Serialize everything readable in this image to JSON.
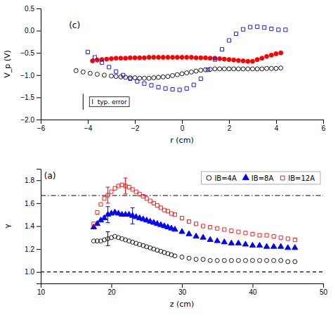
{
  "chart_data": [
    {
      "type": "scatter",
      "xlabel": "r (cm)",
      "ylabel": "V_p (V)",
      "xlim": [
        -6,
        6
      ],
      "ylim": [
        -2,
        0.5
      ],
      "xticks": [
        {
          "value": -6,
          "label": "−6"
        },
        {
          "value": -4,
          "label": "−4"
        },
        {
          "value": -2,
          "label": "−2"
        },
        0,
        2,
        4,
        6
      ],
      "yticks": [
        {
          "value": -2,
          "label": "−2.0"
        },
        {
          "value": -1.5,
          "label": "−1.5"
        },
        {
          "value": -1,
          "label": "−1.0"
        },
        {
          "value": -0.5,
          "label": "−0.5"
        },
        {
          "value": 0,
          "label": "0.0"
        },
        0.5
      ],
      "grid": false,
      "annotations": [
        {
          "text": "(c)"
        }
      ],
      "typical_error": {
        "text": "I  typ. error",
        "x": -4.2,
        "y": -1.6,
        "error": 0.18
      },
      "series": [
        {
          "color": "black",
          "marker": "open-circle",
          "x": [
            -4.5,
            -4.2,
            -3.9,
            -3.6,
            -3.3,
            -3.0,
            -2.8,
            -2.6,
            -2.4,
            -2.2,
            -2.0,
            -1.8,
            -1.6,
            -1.4,
            -1.2,
            -1.0,
            -0.8,
            -0.6,
            -0.4,
            -0.2,
            0.0,
            0.2,
            0.4,
            0.6,
            0.8,
            1.0,
            1.2,
            1.4,
            1.6,
            1.8,
            2.0,
            2.2,
            2.4,
            2.6,
            2.8,
            3.0,
            3.2,
            3.4,
            3.6,
            3.8,
            4.0,
            4.2
          ],
          "values": [
            -0.9,
            -0.93,
            -0.96,
            -0.98,
            -1.0,
            -1.02,
            -1.03,
            -1.04,
            -1.05,
            -1.06,
            -1.06,
            -1.07,
            -1.07,
            -1.07,
            -1.06,
            -1.05,
            -1.04,
            -1.03,
            -1.01,
            -0.99,
            -0.97,
            -0.95,
            -0.93,
            -0.91,
            -0.89,
            -0.88,
            -0.87,
            -0.86,
            -0.86,
            -0.86,
            -0.86,
            -0.86,
            -0.86,
            -0.86,
            -0.86,
            -0.86,
            -0.86,
            -0.86,
            -0.85,
            -0.85,
            -0.85,
            -0.84
          ]
        },
        {
          "color": "red",
          "marker": "circle",
          "x": [
            -3.8,
            -3.6,
            -3.4,
            -3.2,
            -3.0,
            -2.8,
            -2.6,
            -2.4,
            -2.2,
            -2.0,
            -1.8,
            -1.6,
            -1.4,
            -1.2,
            -1.0,
            -0.8,
            -0.6,
            -0.4,
            -0.2,
            0.0,
            0.2,
            0.4,
            0.6,
            0.8,
            1.0,
            1.2,
            1.4,
            1.6,
            1.8,
            2.0,
            2.2,
            2.4,
            2.6,
            2.8,
            3.0,
            3.2,
            3.4,
            3.6,
            3.8,
            4.0,
            4.2
          ],
          "values": [
            -0.68,
            -0.66,
            -0.65,
            -0.64,
            -0.63,
            -0.62,
            -0.62,
            -0.62,
            -0.61,
            -0.61,
            -0.61,
            -0.61,
            -0.6,
            -0.6,
            -0.6,
            -0.6,
            -0.6,
            -0.6,
            -0.6,
            -0.6,
            -0.6,
            -0.6,
            -0.61,
            -0.61,
            -0.61,
            -0.62,
            -0.62,
            -0.63,
            -0.64,
            -0.65,
            -0.66,
            -0.67,
            -0.68,
            -0.69,
            -0.69,
            -0.65,
            -0.62,
            -0.58,
            -0.55,
            -0.52,
            -0.5
          ]
        },
        {
          "color": "blue",
          "marker": "open-square",
          "x": [
            -4.0,
            -3.7,
            -3.4,
            -3.1,
            -2.8,
            -2.5,
            -2.2,
            -1.9,
            -1.6,
            -1.3,
            -1.0,
            -0.7,
            -0.4,
            -0.1,
            0.2,
            0.5,
            0.8,
            1.1,
            1.4,
            1.7,
            2.0,
            2.3,
            2.6,
            2.9,
            3.2,
            3.5,
            3.8,
            4.1,
            4.4
          ],
          "values": [
            -0.48,
            -0.6,
            -0.72,
            -0.82,
            -0.92,
            -1.0,
            -1.08,
            -1.14,
            -1.19,
            -1.23,
            -1.27,
            -1.3,
            -1.32,
            -1.33,
            -1.3,
            -1.22,
            -1.08,
            -0.88,
            -0.65,
            -0.42,
            -0.22,
            -0.07,
            0.03,
            0.08,
            0.09,
            0.07,
            0.04,
            0.02,
            0.02
          ]
        }
      ]
    },
    {
      "type": "scatter",
      "xlabel": "z (cm)",
      "ylabel": "γ",
      "xlim": [
        10,
        50
      ],
      "ylim": [
        0.9,
        1.9
      ],
      "xticks": [
        10,
        20,
        30,
        40,
        50
      ],
      "yticks": [
        {
          "value": 1.0,
          "label": "1.0"
        },
        1.2,
        1.4,
        1.6,
        1.8
      ],
      "grid": false,
      "legend": "upper right",
      "annotations": [
        {
          "text": "(a)"
        }
      ],
      "reference_lines": [
        {
          "value": 1.667,
          "line_style": "dashdot"
        },
        {
          "value": 1.0,
          "line_style": "dashed"
        }
      ],
      "series": [
        {
          "name": "IB=4A",
          "color": "black",
          "marker": "open-circle",
          "x": [
            17.5,
            18.0,
            18.5,
            19.0,
            19.5,
            20.0,
            20.5,
            21.0,
            21.5,
            22.0,
            22.5,
            23.0,
            23.5,
            24.0,
            24.5,
            25.0,
            25.5,
            26.0,
            26.5,
            27.0,
            27.5,
            28.0,
            28.5,
            29.0,
            30.0,
            31.0,
            32.0,
            33.0,
            34.0,
            35.0,
            36.0,
            37.0,
            38.0,
            39.0,
            40.0,
            41.0,
            42.0,
            43.0,
            44.0,
            45.0,
            46.0
          ],
          "values": [
            1.27,
            1.27,
            1.27,
            1.28,
            1.29,
            1.3,
            1.31,
            1.3,
            1.29,
            1.28,
            1.27,
            1.26,
            1.25,
            1.24,
            1.23,
            1.22,
            1.21,
            1.2,
            1.19,
            1.18,
            1.17,
            1.16,
            1.15,
            1.14,
            1.13,
            1.12,
            1.11,
            1.11,
            1.1,
            1.1,
            1.1,
            1.1,
            1.1,
            1.1,
            1.1,
            1.1,
            1.1,
            1.1,
            1.1,
            1.09,
            1.09
          ],
          "errors": [
            null,
            null,
            null,
            null,
            0.06,
            null,
            null,
            null,
            null,
            null,
            null,
            null,
            null,
            null,
            null,
            null,
            null,
            null,
            null,
            null,
            null,
            null,
            null,
            null,
            null,
            null,
            null,
            null,
            null,
            null,
            null,
            null,
            null,
            null,
            null,
            null,
            null,
            null,
            null,
            null,
            null
          ]
        },
        {
          "name": "IB=8A",
          "color": "blue",
          "marker": "triangle",
          "x": [
            17.5,
            18.0,
            18.5,
            19.0,
            19.5,
            20.0,
            20.5,
            21.0,
            21.5,
            22.0,
            22.5,
            23.0,
            23.5,
            24.0,
            24.5,
            25.0,
            25.5,
            26.0,
            26.5,
            27.0,
            27.5,
            28.0,
            28.5,
            29.0,
            30.0,
            31.0,
            32.0,
            33.0,
            34.0,
            35.0,
            36.0,
            37.0,
            38.0,
            39.0,
            40.0,
            41.0,
            42.0,
            43.0,
            44.0,
            45.0,
            46.0
          ],
          "values": [
            1.39,
            1.42,
            1.45,
            1.47,
            1.5,
            1.51,
            1.52,
            1.51,
            1.5,
            1.5,
            1.5,
            1.49,
            1.48,
            1.47,
            1.46,
            1.45,
            1.44,
            1.43,
            1.42,
            1.41,
            1.4,
            1.39,
            1.38,
            1.37,
            1.35,
            1.33,
            1.31,
            1.3,
            1.28,
            1.27,
            1.26,
            1.25,
            1.25,
            1.24,
            1.23,
            1.23,
            1.22,
            1.22,
            1.22,
            1.21,
            1.21
          ],
          "errors": [
            null,
            null,
            null,
            null,
            0.07,
            null,
            null,
            null,
            null,
            null,
            null,
            0.07,
            null,
            null,
            null,
            null,
            null,
            null,
            null,
            null,
            null,
            null,
            null,
            null,
            null,
            null,
            null,
            null,
            null,
            null,
            null,
            null,
            null,
            null,
            null,
            null,
            null,
            null,
            null,
            null,
            null
          ]
        },
        {
          "name": "IB=12A",
          "color": "red",
          "marker": "open-square",
          "x": [
            17.5,
            18.0,
            18.5,
            19.0,
            19.5,
            20.0,
            20.5,
            21.0,
            21.5,
            22.0,
            22.5,
            23.0,
            23.5,
            24.0,
            24.5,
            25.0,
            25.5,
            26.0,
            26.5,
            27.0,
            27.5,
            28.0,
            28.5,
            29.0,
            30.0,
            31.0,
            32.0,
            33.0,
            34.0,
            35.0,
            36.0,
            37.0,
            38.0,
            39.0,
            40.0,
            41.0,
            42.0,
            43.0,
            44.0,
            45.0,
            46.0
          ],
          "values": [
            1.42,
            1.52,
            1.59,
            1.64,
            1.67,
            1.7,
            1.73,
            1.75,
            1.76,
            1.75,
            1.74,
            1.72,
            1.7,
            1.68,
            1.66,
            1.64,
            1.62,
            1.6,
            1.58,
            1.56,
            1.54,
            1.53,
            1.51,
            1.5,
            1.47,
            1.44,
            1.42,
            1.4,
            1.39,
            1.38,
            1.37,
            1.36,
            1.35,
            1.34,
            1.33,
            1.32,
            1.32,
            1.31,
            1.3,
            1.29,
            1.28
          ],
          "errors": [
            null,
            null,
            null,
            null,
            0.07,
            null,
            null,
            null,
            null,
            0.07,
            null,
            null,
            null,
            null,
            null,
            null,
            null,
            null,
            null,
            null,
            null,
            null,
            null,
            null,
            null,
            null,
            null,
            null,
            null,
            null,
            null,
            null,
            null,
            null,
            null,
            null,
            null,
            null,
            null,
            null,
            null
          ]
        }
      ]
    }
  ]
}
